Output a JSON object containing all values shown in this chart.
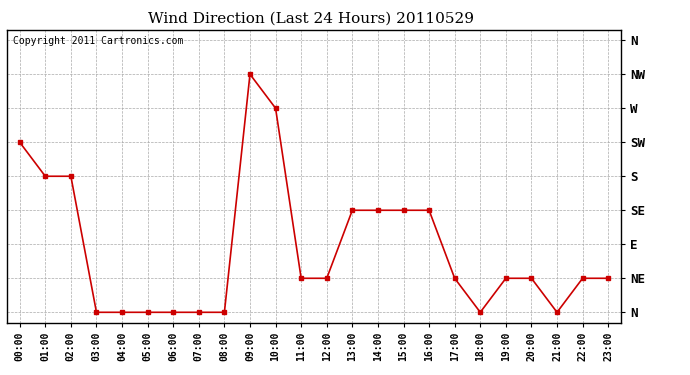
{
  "title": "Wind Direction (Last 24 Hours) 20110529",
  "copyright_text": "Copyright 2011 Cartronics.com",
  "x_labels": [
    "00:00",
    "01:00",
    "02:00",
    "03:00",
    "04:00",
    "05:00",
    "06:00",
    "07:00",
    "08:00",
    "09:00",
    "10:00",
    "11:00",
    "12:00",
    "13:00",
    "14:00",
    "15:00",
    "16:00",
    "17:00",
    "18:00",
    "19:00",
    "20:00",
    "21:00",
    "22:00",
    "23:00"
  ],
  "y_ticks_labels": [
    "N",
    "NE",
    "E",
    "SE",
    "S",
    "SW",
    "W",
    "NW",
    "N"
  ],
  "y_ticks_values": [
    0,
    1,
    2,
    3,
    4,
    5,
    6,
    7,
    8
  ],
  "data_values": [
    5,
    4,
    4,
    0,
    0,
    0,
    0,
    0,
    0,
    7,
    6,
    1,
    1,
    3,
    3,
    3,
    3,
    1,
    0,
    1,
    1,
    0,
    1,
    1
  ],
  "line_color": "#cc0000",
  "marker": "s",
  "marker_size": 3,
  "background_color": "#ffffff",
  "grid_color": "#aaaaaa",
  "title_fontsize": 11,
  "ylabel_fontsize": 9,
  "xlabel_fontsize": 7,
  "copyright_fontsize": 7
}
